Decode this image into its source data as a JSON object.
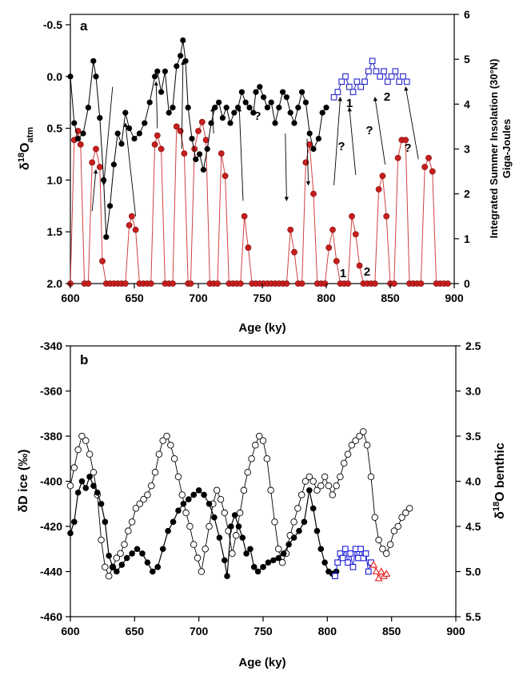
{
  "figure": {
    "width": 649,
    "height": 845
  },
  "chart_data": [
    {
      "panel_label": "a",
      "type": "scatter",
      "xlabel": "Age (ky)",
      "xlim": [
        600,
        900
      ],
      "xticks": [
        600,
        650,
        700,
        750,
        800,
        850,
        900
      ],
      "y_left": {
        "lim_top": -0.6,
        "lim_bottom": 2.0,
        "ticks": [
          -0.5,
          0.0,
          0.5,
          1.0,
          1.5,
          2.0
        ],
        "tick_labels": [
          "-0.5",
          "0.0",
          "0.5",
          "1.0",
          "1.5",
          "2.0"
        ]
      },
      "ylabel_left": {
        "main": "δ",
        "sup": "18",
        "main2": "O",
        "sub": "atm"
      },
      "y_right": {
        "lim": [
          0,
          6
        ],
        "ticks": [
          0,
          1,
          2,
          3,
          4,
          5,
          6
        ]
      },
      "ylabel_right": [
        "Integrated Summer Insolation (30°N)",
        "Giga-Joules"
      ],
      "annotations": {
        "q": "?",
        "one": "1",
        "two": "2"
      },
      "series": [
        {
          "style": "black-filled-circles-line",
          "color": "#000000",
          "x": [
            600,
            603,
            606,
            610,
            614,
            618,
            620,
            623,
            626,
            628,
            631,
            634,
            637,
            640,
            643,
            646,
            650,
            654,
            658,
            662,
            666,
            668,
            671,
            674,
            677,
            680,
            683,
            686,
            688,
            690,
            692,
            695,
            698,
            701,
            704,
            707,
            710,
            713,
            716,
            719,
            722,
            725,
            728,
            731,
            734,
            737,
            740,
            743,
            745,
            748,
            751,
            754,
            757,
            760,
            763,
            766,
            769,
            772,
            775,
            778,
            781,
            784,
            787,
            790,
            794,
            797,
            800
          ],
          "y": [
            0.0,
            0.45,
            0.6,
            0.55,
            0.3,
            -0.15,
            0.0,
            0.4,
            1.0,
            1.55,
            1.25,
            0.85,
            0.55,
            0.65,
            0.35,
            0.5,
            0.6,
            0.55,
            0.45,
            0.25,
            0.0,
            -0.05,
            0.15,
            -0.05,
            0.35,
            0.3,
            -0.1,
            -0.2,
            -0.35,
            -0.15,
            0.3,
            0.6,
            0.8,
            0.75,
            0.9,
            0.7,
            0.45,
            0.3,
            0.25,
            0.4,
            0.3,
            0.45,
            0.35,
            0.3,
            0.15,
            0.25,
            0.3,
            0.35,
            0.15,
            0.1,
            0.2,
            0.3,
            0.25,
            0.45,
            0.3,
            0.15,
            0.2,
            0.35,
            0.45,
            0.3,
            0.15,
            0.25,
            0.55,
            0.7,
            0.6,
            0.35,
            0.3
          ]
        },
        {
          "style": "blue-open-squares-line",
          "color": "#2323c8",
          "x": [
            806,
            809,
            812,
            815,
            818,
            821,
            824,
            827,
            830,
            833,
            836,
            839,
            842,
            845,
            848,
            851,
            854,
            857,
            860,
            863
          ],
          "y": [
            0.2,
            0.15,
            0.05,
            0.0,
            0.1,
            0.15,
            0.05,
            0.1,
            0.05,
            -0.05,
            -0.15,
            -0.05,
            0.0,
            -0.05,
            0.05,
            0.0,
            -0.05,
            0.05,
            0.0,
            0.05
          ]
        },
        {
          "style": "red-filled-circles-line",
          "color": "#c01818",
          "x": [
            600,
            603,
            606,
            608,
            611,
            614,
            617,
            620,
            623,
            625,
            628,
            631,
            634,
            637,
            640,
            643,
            646,
            648,
            651,
            654,
            657,
            660,
            663,
            666,
            668,
            671,
            674,
            677,
            680,
            683,
            686,
            689,
            692,
            694,
            697,
            700,
            703,
            706,
            709,
            712,
            715,
            718,
            721,
            724,
            727,
            730,
            733,
            736,
            739,
            742,
            745,
            748,
            751,
            754,
            757,
            760,
            763,
            766,
            769,
            772,
            775,
            778,
            781,
            784,
            787,
            790,
            793,
            796,
            799,
            802,
            805,
            808,
            811,
            814,
            817,
            820,
            823,
            826,
            829,
            832,
            835,
            838,
            841,
            844,
            847,
            850,
            853,
            856,
            859,
            862,
            865,
            868,
            871,
            874,
            877,
            880,
            883,
            886,
            889,
            892,
            895
          ],
          "ins": [
            0,
            3.2,
            3.4,
            3.1,
            0,
            0,
            2.7,
            3.0,
            2.6,
            0.5,
            0,
            0,
            0,
            0,
            0,
            0,
            1.3,
            1.5,
            1.2,
            0,
            0,
            0,
            0,
            3.1,
            3.3,
            3.0,
            0,
            0,
            0,
            3.5,
            3.4,
            2.9,
            0,
            0,
            3.0,
            3.4,
            3.6,
            3.2,
            0,
            0,
            0,
            2.9,
            2.4,
            0,
            0,
            0,
            0,
            1.5,
            0.8,
            0,
            0,
            0,
            0,
            0,
            0,
            0,
            0,
            0,
            0,
            1.2,
            0.7,
            0,
            0,
            2.7,
            3.1,
            2.0,
            0,
            0,
            0,
            0.8,
            1.2,
            0.5,
            0,
            0,
            0,
            1.5,
            1.1,
            0.4,
            0,
            0,
            0,
            0,
            2.1,
            2.4,
            1.5,
            0,
            0,
            2.8,
            3.2,
            3.2,
            0,
            0,
            0,
            0,
            2.6,
            2.8,
            2.5,
            0,
            0,
            0,
            0
          ]
        }
      ]
    },
    {
      "panel_label": "b",
      "type": "scatter",
      "xlabel": "Age (ky)",
      "xlim": [
        600,
        900
      ],
      "xticks": [
        600,
        650,
        700,
        750,
        800,
        850,
        900
      ],
      "y_left": {
        "lim": [
          -460,
          -340
        ],
        "ticks": [
          -460,
          -440,
          -420,
          -400,
          -380,
          -360,
          -340
        ]
      },
      "ylabel_left": "δD ice (‰)",
      "y_right": {
        "lim_top": 2.5,
        "lim_bottom": 5.5,
        "ticks": [
          2.5,
          3.0,
          3.5,
          4.0,
          4.5,
          5.0,
          5.5
        ],
        "tick_labels": [
          "2.5",
          "3.0",
          "3.5",
          "4.0",
          "4.5",
          "5.0",
          "5.5"
        ]
      },
      "ylabel_right": {
        "main": "δ",
        "sup": "18",
        "main2": "O benthic"
      },
      "series": [
        {
          "style": "black-filled-circles-dense",
          "color": "#000000",
          "x": [
            600,
            603,
            606,
            609,
            612,
            615,
            618,
            621,
            624,
            627,
            630,
            633,
            636,
            640,
            644,
            648,
            652,
            656,
            660,
            664,
            668,
            672,
            676,
            680,
            684,
            688,
            692,
            696,
            700,
            704,
            708,
            712,
            716,
            720,
            722,
            725,
            728,
            731,
            734,
            737,
            740,
            743,
            746,
            750,
            754,
            758,
            762,
            766,
            770,
            774,
            778,
            782,
            786,
            789,
            792,
            795,
            798,
            801,
            804,
            807
          ],
          "y": [
            -423,
            -418,
            -405,
            -400,
            -403,
            -398,
            -402,
            -405,
            -410,
            -418,
            -433,
            -438,
            -440,
            -437,
            -434,
            -432,
            -430,
            -432,
            -436,
            -440,
            -438,
            -430,
            -422,
            -418,
            -413,
            -410,
            -408,
            -406,
            -404,
            -406,
            -410,
            -416,
            -425,
            -435,
            -442,
            -420,
            -415,
            -420,
            -425,
            -432,
            -430,
            -438,
            -440,
            -438,
            -436,
            -435,
            -434,
            -432,
            -428,
            -425,
            -422,
            -418,
            -404,
            -412,
            -422,
            -430,
            -436,
            -440,
            -441,
            -440
          ]
        },
        {
          "style": "open-circles-line",
          "color": "#000000",
          "d18o": [
            4.05,
            3.85,
            3.65,
            3.5,
            3.55,
            3.7,
            3.9,
            4.15,
            4.65,
            4.95,
            5.05,
            4.95,
            4.85,
            4.8,
            4.7,
            4.55,
            4.45,
            4.3,
            4.25,
            4.2,
            4.15,
            4.05,
            3.9,
            3.7,
            3.55,
            3.5,
            3.6,
            3.75,
            3.95,
            4.15,
            4.35,
            4.5,
            4.7,
            4.85,
            5.0,
            4.75,
            4.5,
            4.25,
            4.1,
            4.2,
            4.35,
            4.55,
            4.8,
            4.6,
            4.35,
            4.1,
            3.9,
            3.75,
            3.6,
            3.5,
            3.55,
            3.75,
            4.1,
            4.45,
            4.75,
            4.9,
            4.8,
            4.6,
            4.45,
            4.3,
            4.15,
            4.0,
            3.95,
            4.0,
            4.1,
            4.05,
            3.95,
            4.05,
            4.15,
            4.05,
            3.95,
            3.8,
            3.7,
            3.6,
            3.55,
            3.5,
            3.45,
            3.6,
            3.95,
            4.4,
            4.65,
            4.75,
            4.8,
            4.7,
            4.55,
            4.5,
            4.4,
            4.35,
            4.3
          ],
          "x": [
            600,
            603,
            606,
            609,
            612,
            615,
            618,
            621,
            624,
            627,
            630,
            633,
            636,
            639,
            642,
            645,
            648,
            651,
            654,
            657,
            660,
            663,
            666,
            669,
            672,
            675,
            678,
            681,
            684,
            687,
            690,
            693,
            696,
            699,
            702,
            705,
            708,
            711,
            714,
            717,
            720,
            723,
            726,
            729,
            732,
            735,
            738,
            741,
            744,
            747,
            750,
            753,
            756,
            759,
            762,
            765,
            768,
            771,
            774,
            777,
            780,
            783,
            786,
            789,
            792,
            795,
            798,
            801,
            804,
            807,
            810,
            813,
            816,
            819,
            822,
            825,
            828,
            831,
            834,
            837,
            840,
            843,
            846,
            849,
            852,
            855,
            858,
            861,
            864
          ]
        },
        {
          "style": "blue-open-squares-dense",
          "color": "#1818d8",
          "x": [
            806,
            808,
            810,
            812,
            814,
            816,
            818,
            820,
            822,
            824,
            826,
            828,
            830,
            832,
            834
          ],
          "y": [
            -442,
            -436,
            -432,
            -434,
            -430,
            -436,
            -432,
            -438,
            -430,
            -434,
            -430,
            -434,
            -432,
            -440,
            -436
          ]
        },
        {
          "style": "red-open-triangles",
          "color": "#e02020",
          "x": [
            836,
            838,
            840,
            842,
            844,
            846
          ],
          "y": [
            -437,
            -440,
            -443,
            -440,
            -442,
            -441
          ]
        }
      ]
    }
  ]
}
